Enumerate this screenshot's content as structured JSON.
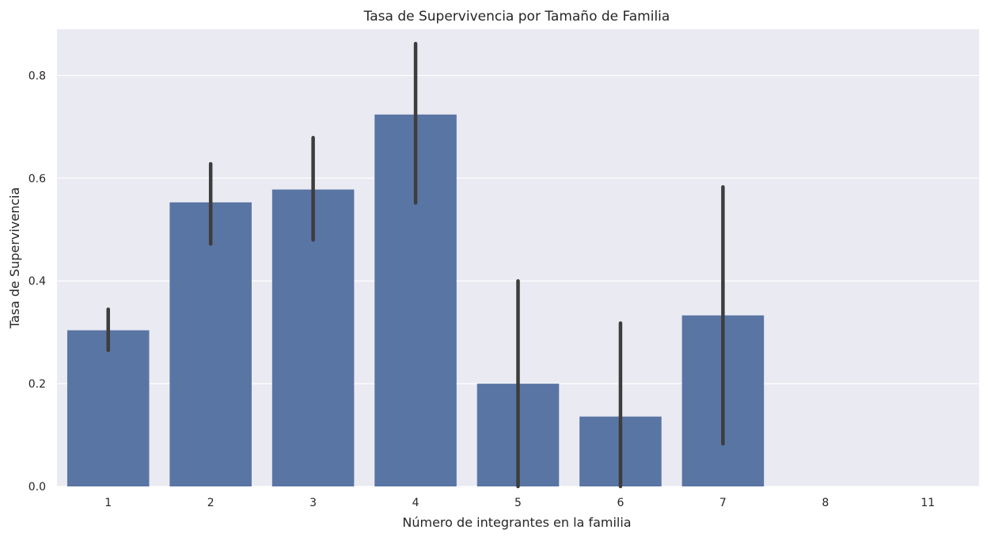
{
  "chart_data": {
    "type": "bar",
    "title": "Tasa de Supervivencia por Tamaño de Familia",
    "xlabel": "Número de integrantes en la familia",
    "ylabel": "Tasa de Supervivencia",
    "categories": [
      "1",
      "2",
      "3",
      "4",
      "5",
      "6",
      "7",
      "8",
      "11"
    ],
    "values": [
      0.304,
      0.553,
      0.578,
      0.724,
      0.2,
      0.136,
      0.333,
      0.0,
      0.0
    ],
    "error_bars": [
      [
        0.265,
        0.345
      ],
      [
        0.472,
        0.628
      ],
      [
        0.48,
        0.679
      ],
      [
        0.552,
        0.862
      ],
      [
        0.0,
        0.4
      ],
      [
        0.0,
        0.318
      ],
      [
        0.083,
        0.583
      ],
      null,
      null
    ],
    "ylim": [
      0,
      0.89
    ],
    "yticks": [
      0.0,
      0.2,
      0.4,
      0.6,
      0.8
    ],
    "ytick_labels": [
      "0.0",
      "0.2",
      "0.4",
      "0.6",
      "0.8"
    ],
    "grid": "horizontal",
    "colors": {
      "bar": "#5975a4",
      "error_bar": "#3d3d3d",
      "plot_background": "#eaeaf2",
      "grid": "#ffffff"
    }
  }
}
